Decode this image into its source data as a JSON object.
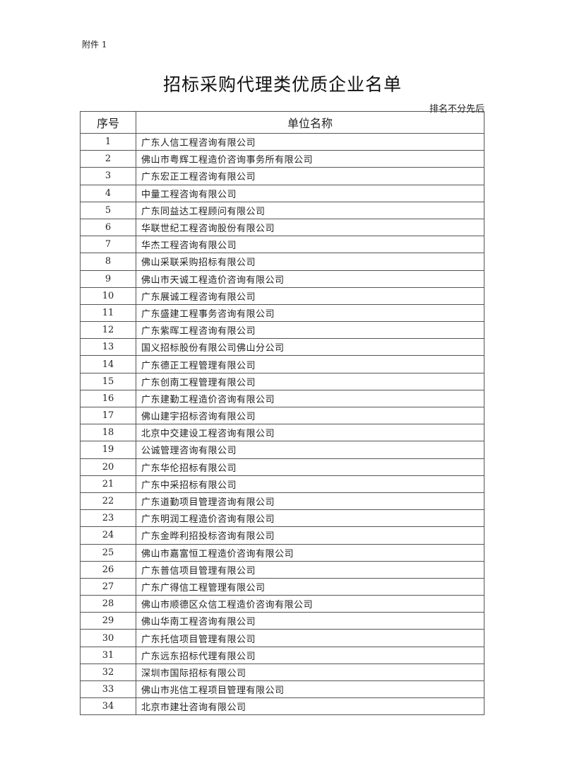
{
  "attachment_label": "附件 1",
  "title": "招标采购代理类优质企业名单",
  "note": "排名不分先后",
  "table": {
    "headers": [
      "序号",
      "单位名称"
    ],
    "rows": [
      [
        "1",
        "广东人信工程咨询有限公司"
      ],
      [
        "2",
        "佛山市粤辉工程造价咨询事务所有限公司"
      ],
      [
        "3",
        "广东宏正工程咨询有限公司"
      ],
      [
        "4",
        "中量工程咨询有限公司"
      ],
      [
        "5",
        "广东同益达工程顾问有限公司"
      ],
      [
        "6",
        "华联世纪工程咨询股份有限公司"
      ],
      [
        "7",
        "华杰工程咨询有限公司"
      ],
      [
        "8",
        "佛山采联采购招标有限公司"
      ],
      [
        "9",
        "佛山市天诚工程造价咨询有限公司"
      ],
      [
        "10",
        "广东展诚工程咨询有限公司"
      ],
      [
        "11",
        "广东盛建工程事务咨询有限公司"
      ],
      [
        "12",
        "广东紫晖工程咨询有限公司"
      ],
      [
        "13",
        "国义招标股份有限公司佛山分公司"
      ],
      [
        "14",
        "广东德正工程管理有限公司"
      ],
      [
        "15",
        "广东创南工程管理有限公司"
      ],
      [
        "16",
        "广东建勤工程造价咨询有限公司"
      ],
      [
        "17",
        "佛山建宇招标咨询有限公司"
      ],
      [
        "18",
        "北京中交建设工程咨询有限公司"
      ],
      [
        "19",
        "公诚管理咨询有限公司"
      ],
      [
        "20",
        "广东华伦招标有限公司"
      ],
      [
        "21",
        "广东中采招标有限公司"
      ],
      [
        "22",
        "广东道勤项目管理咨询有限公司"
      ],
      [
        "23",
        "广东明润工程造价咨询有限公司"
      ],
      [
        "24",
        "广东金晔利招投标咨询有限公司"
      ],
      [
        "25",
        "佛山市嘉富恒工程造价咨询有限公司"
      ],
      [
        "26",
        "广东普信项目管理有限公司"
      ],
      [
        "27",
        "广东广得信工程管理有限公司"
      ],
      [
        "28",
        "佛山市顺德区众信工程造价咨询有限公司"
      ],
      [
        "29",
        "佛山华南工程咨询有限公司"
      ],
      [
        "30",
        "广东托信项目管理有限公司"
      ],
      [
        "31",
        "广东远东招标代理有限公司"
      ],
      [
        "32",
        "深圳市国际招标有限公司"
      ],
      [
        "33",
        "佛山市兆信工程项目管理有限公司"
      ],
      [
        "34",
        "北京市建壮咨询有限公司"
      ]
    ]
  }
}
